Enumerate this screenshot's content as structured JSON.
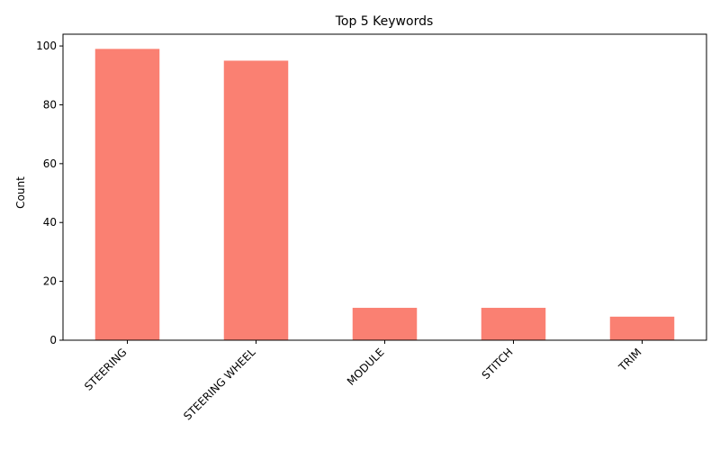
{
  "chart_data": {
    "type": "bar",
    "title": "Top 5 Keywords",
    "xlabel": "",
    "ylabel": "Count",
    "categories": [
      "STEERING",
      "STEERING WHEEL",
      "MODULE",
      "STITCH",
      "TRIM"
    ],
    "values": [
      99,
      95,
      11,
      11,
      8
    ],
    "ylim": [
      0,
      104
    ],
    "yticks": [
      0,
      20,
      40,
      60,
      80,
      100
    ],
    "bar_color": "#FA8072",
    "grid": false,
    "legend": "none"
  }
}
